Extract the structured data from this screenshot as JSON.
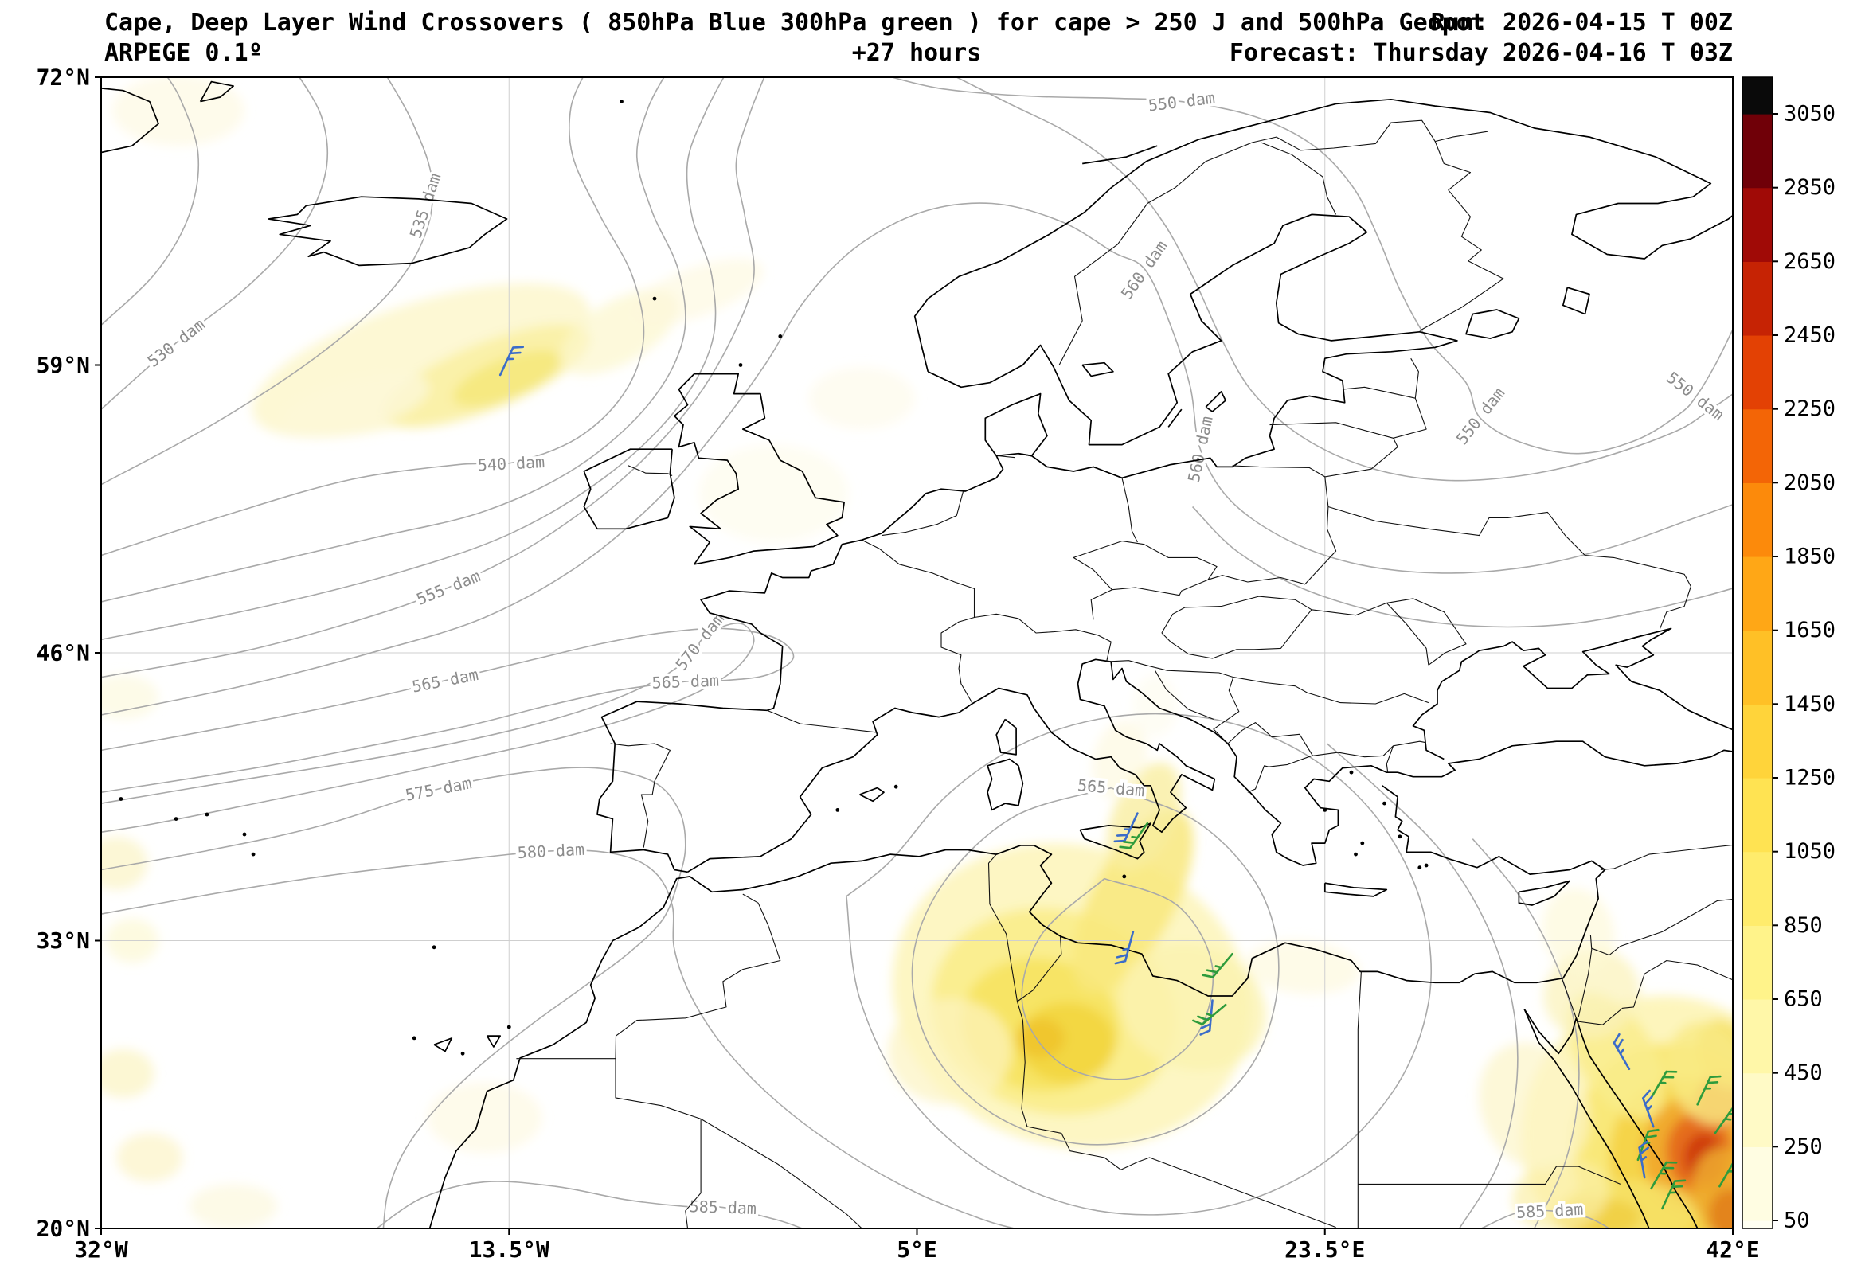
{
  "header": {
    "title": "Cape, Deep Layer Wind Crossovers ( 850hPa Blue 300hPa green ) for cape > 250 J and 500hPa Geopot",
    "run": "Run: 2026-04-15 T 00Z",
    "model": "ARPEGE 0.1º",
    "lead_time": "+27 hours",
    "forecast": "Forecast: Thursday 2026-04-16 T 03Z"
  },
  "axes": {
    "x_ticks": [
      {
        "label": "32°W",
        "lon": -32
      },
      {
        "label": "13.5°W",
        "lon": -13.5
      },
      {
        "label": "5°E",
        "lon": 5
      },
      {
        "label": "23.5°E",
        "lon": 23.5
      },
      {
        "label": "42°E",
        "lon": 42
      }
    ],
    "y_ticks": [
      {
        "label": "72°N",
        "lat": 72
      },
      {
        "label": "59°N",
        "lat": 59
      },
      {
        "label": "46°N",
        "lat": 46
      },
      {
        "label": "33°N",
        "lat": 33
      },
      {
        "label": "20°N",
        "lat": 20
      }
    ]
  },
  "colorbar": {
    "tick_labels_top_to_bottom": [
      "3050",
      "2850",
      "2650",
      "2450",
      "2250",
      "2050",
      "1850",
      "1650",
      "1450",
      "1250",
      "1050",
      "850",
      "650",
      "450",
      "250",
      "50"
    ],
    "levels_bottom_to_top": [
      50,
      250,
      450,
      650,
      850,
      1050,
      1250,
      1450,
      1650,
      1850,
      2050,
      2250,
      2450,
      2650,
      2850,
      3050
    ],
    "colors_bottom_to_top": [
      "#fffff2",
      "#fffde2",
      "#fffac6",
      "#fff7a8",
      "#fff38a",
      "#ffec6c",
      "#ffe352",
      "#ffd43a",
      "#ffc026",
      "#ffa716",
      "#fc8a0b",
      "#f36506",
      "#e34104",
      "#c62304",
      "#a00a06",
      "#700008",
      "#0a0a0a"
    ]
  },
  "legend": {
    "wind_850hPa_color_name": "blue",
    "wind_850hPa_hex": "#3b6cc9",
    "wind_300hPa_color_name": "green",
    "wind_300hPa_hex": "#2e9b3c"
  },
  "contour_labels": [
    {
      "text": "530 dam",
      "lon": -28.6,
      "lat": 60.0,
      "rot": -38
    },
    {
      "text": "535 dam",
      "lon": -17.3,
      "lat": 66.2,
      "rot": -72
    },
    {
      "text": "540 dam",
      "lon": -13.4,
      "lat": 54.55,
      "rot": -3
    },
    {
      "text": "550 dam",
      "lon": 17.0,
      "lat": 70.9,
      "rot": -7
    },
    {
      "text": "550 dam",
      "lon": 30.55,
      "lat": 56.7,
      "rot": -52
    },
    {
      "text": "550 dam",
      "lon": 40.3,
      "lat": 57.6,
      "rot": 38
    },
    {
      "text": "555 dam",
      "lon": -16.25,
      "lat": 48.95,
      "rot": -22
    },
    {
      "text": "560 dam",
      "lon": 15.3,
      "lat": 63.3,
      "rot": -55
    },
    {
      "text": "560 dam",
      "lon": 17.85,
      "lat": 55.2,
      "rot": -78
    },
    {
      "text": "565 dam",
      "lon": -16.4,
      "lat": 44.75,
      "rot": -11
    },
    {
      "text": "565 dam",
      "lon": -5.5,
      "lat": 44.7,
      "rot": -2
    },
    {
      "text": "570 dam",
      "lon": -4.85,
      "lat": 46.5,
      "rot": -52
    },
    {
      "text": "575 dam",
      "lon": -16.7,
      "lat": 39.85,
      "rot": -11
    },
    {
      "text": "580 dam",
      "lon": -11.6,
      "lat": 37.05,
      "rot": -3
    },
    {
      "text": "565 dam",
      "lon": 13.8,
      "lat": 39.9,
      "rot": 5
    },
    {
      "text": "585 dam",
      "lon": -3.8,
      "lat": 20.95,
      "rot": 2
    },
    {
      "text": "585 dam",
      "lon": 33.7,
      "lat": 20.8,
      "rot": -3
    }
  ],
  "chart_data": {
    "type": "heatmap",
    "map_projection": "equirectangular",
    "lon_range": [
      -32,
      42
    ],
    "lat_range": [
      20,
      72
    ],
    "shaded_field": "CAPE (J), shown where cape > 250 J",
    "contour_field": "500 hPa geopotential height (dam)",
    "geopotential_contour_values_dam": [
      525,
      530,
      535,
      540,
      545,
      550,
      555,
      560,
      565,
      570,
      575,
      580,
      585
    ],
    "cape_maxima": [
      {
        "region": "NE Atlantic west of Scotland",
        "lon": -14,
        "lat": 58.5,
        "approx_max_J": 650
      },
      {
        "region": "Central Mediterranean / Tunisia-Libya-Sicily",
        "lon": 11,
        "lat": 29,
        "approx_max_J": 900
      },
      {
        "region": "Red Sea / western Saudi Arabia",
        "lon": 40.5,
        "lat": 23.3,
        "approx_max_J": 2400
      }
    ],
    "wind_barbs": [
      {
        "lon": -13.9,
        "lat": 58.55,
        "level": "850hPa",
        "color": "blue",
        "dir": 25
      },
      {
        "lon": 15.0,
        "lat": 38.75,
        "level": "850hPa",
        "color": "blue",
        "dir": 205
      },
      {
        "lon": 15.45,
        "lat": 38.3,
        "level": "300hPa",
        "color": "green",
        "dir": 215
      },
      {
        "lon": 14.8,
        "lat": 33.4,
        "level": "850hPa",
        "color": "blue",
        "dir": 195
      },
      {
        "lon": 19.3,
        "lat": 32.4,
        "level": "300hPa",
        "color": "green",
        "dir": 220
      },
      {
        "lon": 18.4,
        "lat": 30.3,
        "level": "850hPa",
        "color": "blue",
        "dir": 185
      },
      {
        "lon": 19.0,
        "lat": 30.1,
        "level": "300hPa",
        "color": "green",
        "dir": 230
      },
      {
        "lon": 37.3,
        "lat": 27.2,
        "level": "850hPa",
        "color": "blue",
        "dir": 330
      },
      {
        "lon": 38.3,
        "lat": 25.9,
        "level": "300hPa",
        "color": "green",
        "dir": 30
      },
      {
        "lon": 40.4,
        "lat": 25.6,
        "level": "300hPa",
        "color": "green",
        "dir": 25
      },
      {
        "lon": 41.2,
        "lat": 24.3,
        "level": "300hPa",
        "color": "green",
        "dir": 35
      },
      {
        "lon": 38.4,
        "lat": 24.6,
        "level": "850hPa",
        "color": "blue",
        "dir": 340
      },
      {
        "lon": 37.7,
        "lat": 23.1,
        "level": "300hPa",
        "color": "green",
        "dir": 20
      },
      {
        "lon": 38.0,
        "lat": 22.3,
        "level": "850hPa",
        "color": "blue",
        "dir": 350
      },
      {
        "lon": 38.3,
        "lat": 21.8,
        "level": "300hPa",
        "color": "green",
        "dir": 30
      },
      {
        "lon": 38.8,
        "lat": 20.9,
        "level": "300hPa",
        "color": "green",
        "dir": 25
      },
      {
        "lon": 41.4,
        "lat": 21.9,
        "level": "300hPa",
        "color": "green",
        "dir": 30
      }
    ],
    "cape_shading": [
      {
        "lon": -17.5,
        "lat": 59.2,
        "rx": 8,
        "ry": 2.6,
        "rot": -18,
        "fill": "#fdf7cf",
        "op": 0.9
      },
      {
        "lon": -14.5,
        "lat": 58.5,
        "rx": 5,
        "ry": 1.5,
        "rot": -22,
        "fill": "#faf0a6",
        "op": 0.95
      },
      {
        "lon": -13.6,
        "lat": 58.4,
        "rx": 2.6,
        "ry": 0.9,
        "rot": -22,
        "fill": "#f6e87e",
        "op": 0.95
      },
      {
        "lon": -20.5,
        "lat": 57.2,
        "rx": 3.5,
        "ry": 1.2,
        "rot": -15,
        "fill": "#fdf8d8",
        "op": 0.8
      },
      {
        "lon": -8.5,
        "lat": 60.5,
        "rx": 3,
        "ry": 1.4,
        "rot": -30,
        "fill": "#fcf6cc",
        "op": 0.7
      },
      {
        "lon": -5,
        "lat": 62.3,
        "rx": 3.2,
        "ry": 1.1,
        "rot": -20,
        "fill": "#fdf9dc",
        "op": 0.6
      },
      {
        "lon": -28.5,
        "lat": 70.5,
        "rx": 3,
        "ry": 1.6,
        "rot": 0,
        "fill": "#fdf9de",
        "op": 0.6
      },
      {
        "lon": -1.5,
        "lat": 53.2,
        "rx": 3.4,
        "ry": 2.2,
        "rot": 0,
        "fill": "#fefbe8",
        "op": 0.55
      },
      {
        "lon": 2.5,
        "lat": 57.5,
        "rx": 2.4,
        "ry": 1.4,
        "rot": 0,
        "fill": "#fdfae4",
        "op": 0.5
      },
      {
        "lon": -31,
        "lat": 44,
        "rx": 1.6,
        "ry": 1,
        "rot": 0,
        "fill": "#fcf8d8",
        "op": 0.6
      },
      {
        "lon": -31.3,
        "lat": 36.5,
        "rx": 1.4,
        "ry": 1.2,
        "rot": 0,
        "fill": "#fbf4c4",
        "op": 0.7
      },
      {
        "lon": -30.6,
        "lat": 33,
        "rx": 1.2,
        "ry": 1,
        "rot": 0,
        "fill": "#fcf6cc",
        "op": 0.6
      },
      {
        "lon": -31,
        "lat": 27,
        "rx": 1.4,
        "ry": 1.1,
        "rot": 0,
        "fill": "#fbf2bc",
        "op": 0.65
      },
      {
        "lon": -29.8,
        "lat": 23.2,
        "rx": 1.5,
        "ry": 1.1,
        "rot": 0,
        "fill": "#fbf2bc",
        "op": 0.6
      },
      {
        "lon": -26,
        "lat": 21,
        "rx": 2,
        "ry": 1,
        "rot": 0,
        "fill": "#fcf6d0",
        "op": 0.5
      },
      {
        "lon": -14.6,
        "lat": 25,
        "rx": 2.6,
        "ry": 1.6,
        "rot": 0,
        "fill": "#fdf8d8",
        "op": 0.5
      },
      {
        "lon": 12,
        "lat": 30.5,
        "rx": 8.2,
        "ry": 6.8,
        "rot": 15,
        "fill": "#fdf6c0",
        "op": 0.95
      },
      {
        "lon": 11.2,
        "lat": 29.8,
        "rx": 5.6,
        "ry": 4.6,
        "rot": 15,
        "fill": "#faee8e",
        "op": 0.95
      },
      {
        "lon": 10.6,
        "lat": 29.2,
        "rx": 3.6,
        "ry": 3,
        "rot": 10,
        "fill": "#f7e363",
        "op": 0.95
      },
      {
        "lon": 11.8,
        "lat": 28.4,
        "rx": 2.2,
        "ry": 1.8,
        "rot": 0,
        "fill": "#f2d53e",
        "op": 0.9
      },
      {
        "lon": 10.6,
        "lat": 28.6,
        "rx": 1.1,
        "ry": 0.9,
        "rot": 0,
        "fill": "#eec32a",
        "op": 0.85
      },
      {
        "lon": 14.8,
        "lat": 34.8,
        "rx": 1.9,
        "ry": 4.6,
        "rot": 28,
        "fill": "#f8e87c",
        "op": 0.85
      },
      {
        "lon": 15.3,
        "lat": 38.6,
        "rx": 1.4,
        "ry": 2.6,
        "rot": 24,
        "fill": "#f9eda0",
        "op": 0.8
      },
      {
        "lon": 14.2,
        "lat": 41.2,
        "rx": 1.2,
        "ry": 1.8,
        "rot": 15,
        "fill": "#fdf8dc",
        "op": 0.6
      },
      {
        "lon": 17.5,
        "lat": 30,
        "rx": 3.4,
        "ry": 2.8,
        "rot": 20,
        "fill": "#fbf2b0",
        "op": 0.8
      },
      {
        "lon": 6.5,
        "lat": 28,
        "rx": 2.8,
        "ry": 2.4,
        "rot": 0,
        "fill": "#fcf4c0",
        "op": 0.7
      },
      {
        "lon": 22.5,
        "lat": 31.8,
        "rx": 2.6,
        "ry": 1.2,
        "rot": 5,
        "fill": "#fdf8d8",
        "op": 0.6
      },
      {
        "lon": 15.8,
        "lat": 43.6,
        "rx": 1,
        "ry": 1.4,
        "rot": 0,
        "fill": "#fefbea",
        "op": 0.5
      },
      {
        "lon": 38.8,
        "lat": 24.3,
        "rx": 6.4,
        "ry": 6.2,
        "rot": -15,
        "fill": "#fdf4b8",
        "op": 0.95
      },
      {
        "lon": 39.3,
        "lat": 23.6,
        "rx": 4.6,
        "ry": 4.8,
        "rot": -15,
        "fill": "#f9e876",
        "op": 0.95
      },
      {
        "lon": 39.8,
        "lat": 23.2,
        "rx": 3.4,
        "ry": 3.6,
        "rot": -10,
        "fill": "#f4d348",
        "op": 0.95
      },
      {
        "lon": 40.2,
        "lat": 23.3,
        "rx": 2.3,
        "ry": 2.6,
        "rot": -10,
        "fill": "#f0a72b",
        "op": 0.92
      },
      {
        "lon": 40.5,
        "lat": 23.4,
        "rx": 1.5,
        "ry": 1.8,
        "rot": -10,
        "fill": "#e4671a",
        "op": 0.92
      },
      {
        "lon": 40.7,
        "lat": 23.2,
        "rx": 0.9,
        "ry": 1.1,
        "rot": 0,
        "fill": "#cc3410",
        "op": 0.9
      },
      {
        "lon": 41.5,
        "lat": 25.8,
        "rx": 1.1,
        "ry": 1.3,
        "rot": 0,
        "fill": "#e87421",
        "op": 0.85
      },
      {
        "lon": 36.7,
        "lat": 27.8,
        "rx": 1.7,
        "ry": 3.2,
        "rot": -32,
        "fill": "#f9ec8c",
        "op": 0.85
      },
      {
        "lon": 35.6,
        "lat": 30.6,
        "rx": 2.2,
        "ry": 2,
        "rot": -20,
        "fill": "#fbf3bc",
        "op": 0.75
      },
      {
        "lon": 35,
        "lat": 33.4,
        "rx": 1.6,
        "ry": 2,
        "rot": -15,
        "fill": "#fdf8d4",
        "op": 0.6
      },
      {
        "lon": 37.4,
        "lat": 20.8,
        "rx": 3,
        "ry": 1.4,
        "rot": 5,
        "fill": "#f6e268",
        "op": 0.85
      },
      {
        "lon": 35.8,
        "lat": 20.5,
        "rx": 2,
        "ry": 0.9,
        "rot": 0,
        "fill": "#f0cc3e",
        "op": 0.8
      },
      {
        "lon": 34.2,
        "lat": 21.5,
        "rx": 2.2,
        "ry": 1.6,
        "rot": -10,
        "fill": "#fbf0a8",
        "op": 0.7
      },
      {
        "lon": 33,
        "lat": 25.5,
        "rx": 2.4,
        "ry": 3,
        "rot": -25,
        "fill": "#fcf5c8",
        "op": 0.7
      },
      {
        "lon": 41.8,
        "lat": 21.5,
        "rx": 1.6,
        "ry": 2.2,
        "rot": -15,
        "fill": "#efae2e",
        "op": 0.85
      },
      {
        "lon": 41.9,
        "lat": 20.6,
        "rx": 1,
        "ry": 1.2,
        "rot": 0,
        "fill": "#e07818",
        "op": 0.8
      },
      {
        "lon": 41.6,
        "lat": 27.9,
        "rx": 1.2,
        "ry": 1.6,
        "rot": -20,
        "fill": "#f6de5e",
        "op": 0.8
      },
      {
        "lon": 40.9,
        "lat": 27,
        "rx": 1.8,
        "ry": 2.4,
        "rot": -20,
        "fill": "#f9ea84",
        "op": 0.8
      }
    ]
  }
}
